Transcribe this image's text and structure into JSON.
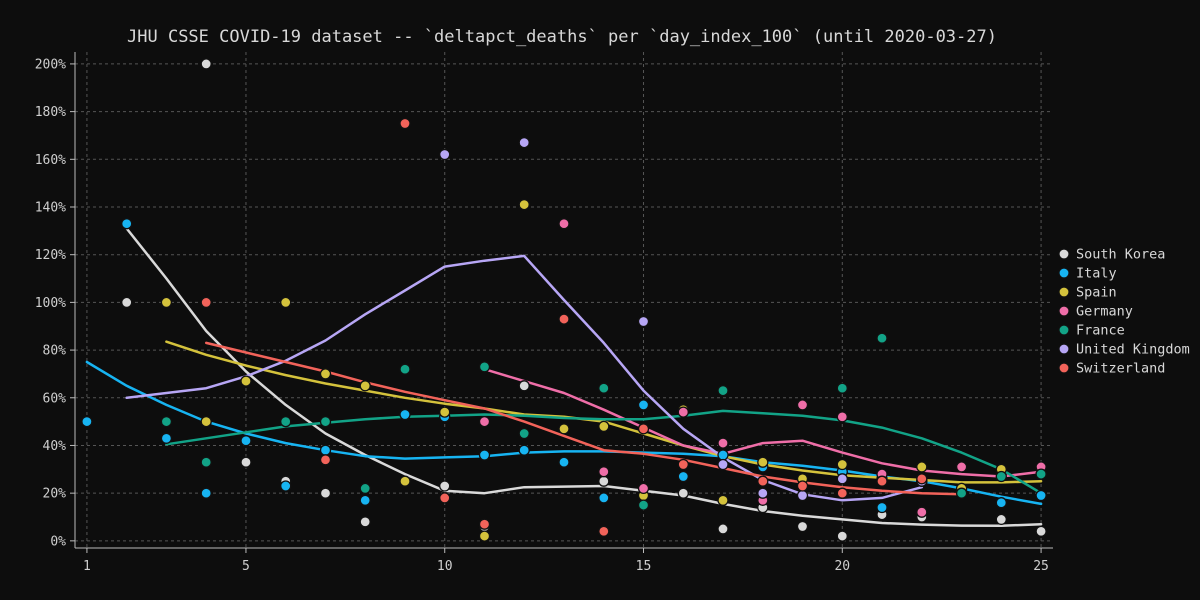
{
  "chart_data": {
    "type": "scatter",
    "title": "JHU CSSE COVID-19 dataset -- `deltapct_deaths` per `day_index_100` (until 2020-03-27)",
    "xlabel": "",
    "ylabel": "",
    "xlim": [
      0.7,
      25.3
    ],
    "ylim": [
      -3,
      205
    ],
    "xticks": [
      1,
      5,
      10,
      15,
      20,
      25
    ],
    "yticks": [
      0,
      20,
      40,
      60,
      80,
      100,
      120,
      140,
      160,
      180,
      200
    ],
    "ytick_labels": [
      "0%",
      "20%",
      "40%",
      "60%",
      "80%",
      "100%",
      "120%",
      "140%",
      "160%",
      "180%",
      "200%"
    ],
    "grid": true,
    "legend_position": "right",
    "background": "#0d0d0d",
    "series": [
      {
        "name": "South Korea",
        "color": "#d9d9d9",
        "points": [
          [
            2,
            100
          ],
          [
            4,
            200
          ],
          [
            5,
            33
          ],
          [
            6,
            25
          ],
          [
            7,
            20
          ],
          [
            8,
            8
          ],
          [
            10,
            23
          ],
          [
            11,
            6
          ],
          [
            12,
            65
          ],
          [
            14,
            25
          ],
          [
            16,
            20
          ],
          [
            17,
            5
          ],
          [
            18,
            14
          ],
          [
            19,
            6
          ],
          [
            20,
            2
          ],
          [
            21,
            11
          ],
          [
            22,
            10
          ],
          [
            23,
            21
          ],
          [
            24,
            9
          ],
          [
            25,
            4
          ]
        ],
        "trend": [
          [
            2,
            131
          ],
          [
            3,
            110
          ],
          [
            4,
            88
          ],
          [
            5,
            71
          ],
          [
            6,
            57
          ],
          [
            7,
            45
          ],
          [
            8,
            36
          ],
          [
            9,
            28
          ],
          [
            10,
            21
          ],
          [
            11,
            20
          ],
          [
            12,
            22.5
          ],
          [
            14,
            23
          ],
          [
            15,
            21
          ],
          [
            16,
            19
          ],
          [
            17,
            15.5
          ],
          [
            18,
            12.5
          ],
          [
            19,
            10.5
          ],
          [
            20,
            9
          ],
          [
            21,
            7.5
          ],
          [
            22,
            6.8
          ],
          [
            23,
            6.4
          ],
          [
            24,
            6.3
          ],
          [
            25,
            7
          ]
        ]
      },
      {
        "name": "Italy",
        "color": "#17b4f2",
        "points": [
          [
            1,
            50
          ],
          [
            2,
            133
          ],
          [
            3,
            43
          ],
          [
            4,
            20
          ],
          [
            5,
            42
          ],
          [
            6,
            23
          ],
          [
            7,
            38
          ],
          [
            8,
            17
          ],
          [
            9,
            53
          ],
          [
            10,
            52
          ],
          [
            11,
            36
          ],
          [
            12,
            38
          ],
          [
            13,
            33
          ],
          [
            14,
            18
          ],
          [
            15,
            57
          ],
          [
            16,
            27
          ],
          [
            17,
            36
          ],
          [
            18,
            31
          ],
          [
            20,
            29
          ],
          [
            21,
            14
          ],
          [
            22,
            25
          ],
          [
            24,
            16
          ],
          [
            25,
            19
          ]
        ],
        "trend": [
          [
            1,
            75
          ],
          [
            2,
            65
          ],
          [
            3,
            57
          ],
          [
            4,
            50
          ],
          [
            5,
            45
          ],
          [
            6,
            41
          ],
          [
            7,
            38
          ],
          [
            8,
            35.5
          ],
          [
            9,
            34.5
          ],
          [
            10,
            35
          ],
          [
            11,
            35.5
          ],
          [
            12,
            37
          ],
          [
            13,
            37.5
          ],
          [
            14,
            37.5
          ],
          [
            15,
            37
          ],
          [
            16,
            36.5
          ],
          [
            17,
            35.5
          ],
          [
            18,
            33
          ],
          [
            19,
            31.5
          ],
          [
            20,
            29.5
          ],
          [
            21,
            27
          ],
          [
            22,
            25
          ],
          [
            23,
            22
          ],
          [
            24,
            18.5
          ],
          [
            25,
            15.5
          ]
        ]
      },
      {
        "name": "Spain",
        "color": "#d4c23c",
        "points": [
          [
            3,
            100
          ],
          [
            4,
            50
          ],
          [
            5,
            67
          ],
          [
            6,
            100
          ],
          [
            7,
            70
          ],
          [
            8,
            65
          ],
          [
            9,
            25
          ],
          [
            10,
            54
          ],
          [
            11,
            2
          ],
          [
            12,
            141
          ],
          [
            13,
            47
          ],
          [
            14,
            48
          ],
          [
            15,
            19
          ],
          [
            16,
            55
          ],
          [
            17,
            17
          ],
          [
            18,
            33
          ],
          [
            19,
            26
          ],
          [
            20,
            32
          ],
          [
            21,
            26
          ],
          [
            22,
            31
          ],
          [
            23,
            22
          ],
          [
            24,
            30
          ],
          [
            25,
            28
          ]
        ],
        "trend": [
          [
            3,
            83.5
          ],
          [
            4,
            78
          ],
          [
            5,
            73.5
          ],
          [
            6,
            69.5
          ],
          [
            7,
            66
          ],
          [
            8,
            63
          ],
          [
            9,
            60
          ],
          [
            10,
            57.5
          ],
          [
            11,
            55.5
          ],
          [
            12,
            53
          ],
          [
            13,
            52
          ],
          [
            14,
            50
          ],
          [
            15,
            45
          ],
          [
            16,
            40
          ],
          [
            17,
            35.5
          ],
          [
            18,
            32
          ],
          [
            19,
            29.5
          ],
          [
            20,
            27.5
          ],
          [
            21,
            26.5
          ],
          [
            22,
            25.5
          ],
          [
            23,
            24.5
          ],
          [
            24,
            24.5
          ],
          [
            25,
            25
          ]
        ]
      },
      {
        "name": "Germany",
        "color": "#ef6ea8",
        "points": [
          [
            11,
            50
          ],
          [
            13,
            133
          ],
          [
            14,
            29
          ],
          [
            15,
            22
          ],
          [
            16,
            54
          ],
          [
            17,
            41
          ],
          [
            18,
            17
          ],
          [
            19,
            57
          ],
          [
            20,
            52
          ],
          [
            21,
            28
          ],
          [
            22,
            12
          ],
          [
            23,
            31
          ],
          [
            25,
            31
          ]
        ],
        "trend": [
          [
            11,
            72
          ],
          [
            12,
            67
          ],
          [
            13,
            62
          ],
          [
            14,
            55
          ],
          [
            15,
            47.5
          ],
          [
            16,
            40
          ],
          [
            17,
            36.5
          ],
          [
            18,
            41
          ],
          [
            19,
            42
          ],
          [
            20,
            37
          ],
          [
            21,
            32.5
          ],
          [
            22,
            29.5
          ],
          [
            23,
            28
          ],
          [
            24,
            27
          ],
          [
            25,
            29
          ]
        ]
      },
      {
        "name": "France",
        "color": "#12a387",
        "points": [
          [
            3,
            50
          ],
          [
            4,
            33
          ],
          [
            6,
            50
          ],
          [
            7,
            50
          ],
          [
            8,
            22
          ],
          [
            9,
            72
          ],
          [
            11,
            73
          ],
          [
            12,
            45
          ],
          [
            14,
            64
          ],
          [
            15,
            15
          ],
          [
            17,
            63
          ],
          [
            20,
            64
          ],
          [
            21,
            85
          ],
          [
            22,
            25
          ],
          [
            23,
            20
          ],
          [
            24,
            27
          ],
          [
            25,
            28
          ]
        ],
        "trend": [
          [
            3,
            40.5
          ],
          [
            4,
            43
          ],
          [
            5,
            45.5
          ],
          [
            6,
            48
          ],
          [
            7,
            49.5
          ],
          [
            8,
            51
          ],
          [
            9,
            52
          ],
          [
            10,
            52.5
          ],
          [
            11,
            53
          ],
          [
            12,
            52.5
          ],
          [
            13,
            51.5
          ],
          [
            14,
            51
          ],
          [
            15,
            51
          ],
          [
            16,
            52.5
          ],
          [
            17,
            54.5
          ],
          [
            18,
            53.5
          ],
          [
            19,
            52.5
          ],
          [
            20,
            50.5
          ],
          [
            21,
            47.5
          ],
          [
            22,
            43
          ],
          [
            23,
            37
          ],
          [
            24,
            30
          ],
          [
            25,
            20
          ]
        ]
      },
      {
        "name": "United Kingdom",
        "color": "#b7a6f5",
        "points": [
          [
            10,
            162
          ],
          [
            12,
            167
          ],
          [
            15,
            92
          ],
          [
            17,
            32
          ],
          [
            18,
            20
          ],
          [
            19,
            19
          ],
          [
            20,
            26
          ],
          [
            22,
            25
          ]
        ],
        "trend": [
          [
            2,
            60
          ],
          [
            3,
            62
          ],
          [
            4,
            64
          ],
          [
            5,
            69
          ],
          [
            6,
            75.5
          ],
          [
            7,
            84
          ],
          [
            8,
            95
          ],
          [
            9,
            105
          ],
          [
            10,
            115
          ],
          [
            11,
            117.5
          ],
          [
            12,
            119.5
          ],
          [
            13,
            101
          ],
          [
            14,
            83
          ],
          [
            15,
            63
          ],
          [
            16,
            47
          ],
          [
            17,
            35
          ],
          [
            18,
            25.5
          ],
          [
            19,
            19.5
          ],
          [
            20,
            17
          ],
          [
            21,
            18
          ],
          [
            22,
            22.5
          ]
        ]
      },
      {
        "name": "Switzerland",
        "color": "#f2635a",
        "points": [
          [
            4,
            100
          ],
          [
            7,
            34
          ],
          [
            9,
            175
          ],
          [
            10,
            18
          ],
          [
            11,
            7
          ],
          [
            13,
            93
          ],
          [
            14,
            4
          ],
          [
            15,
            47
          ],
          [
            16,
            32
          ],
          [
            18,
            25
          ],
          [
            19,
            23
          ],
          [
            20,
            20
          ],
          [
            21,
            25
          ],
          [
            22,
            26
          ]
        ],
        "trend": [
          [
            4,
            83
          ],
          [
            5,
            79
          ],
          [
            6,
            75
          ],
          [
            7,
            71
          ],
          [
            8,
            66.5
          ],
          [
            9,
            62.5
          ],
          [
            10,
            59
          ],
          [
            11,
            55.5
          ],
          [
            12,
            50
          ],
          [
            13,
            44
          ],
          [
            14,
            38
          ],
          [
            15,
            36.5
          ],
          [
            16,
            34
          ],
          [
            17,
            30.5
          ],
          [
            18,
            27
          ],
          [
            19,
            24.5
          ],
          [
            20,
            22.5
          ],
          [
            21,
            21
          ],
          [
            22,
            20
          ],
          [
            23,
            19.5
          ]
        ]
      }
    ]
  }
}
